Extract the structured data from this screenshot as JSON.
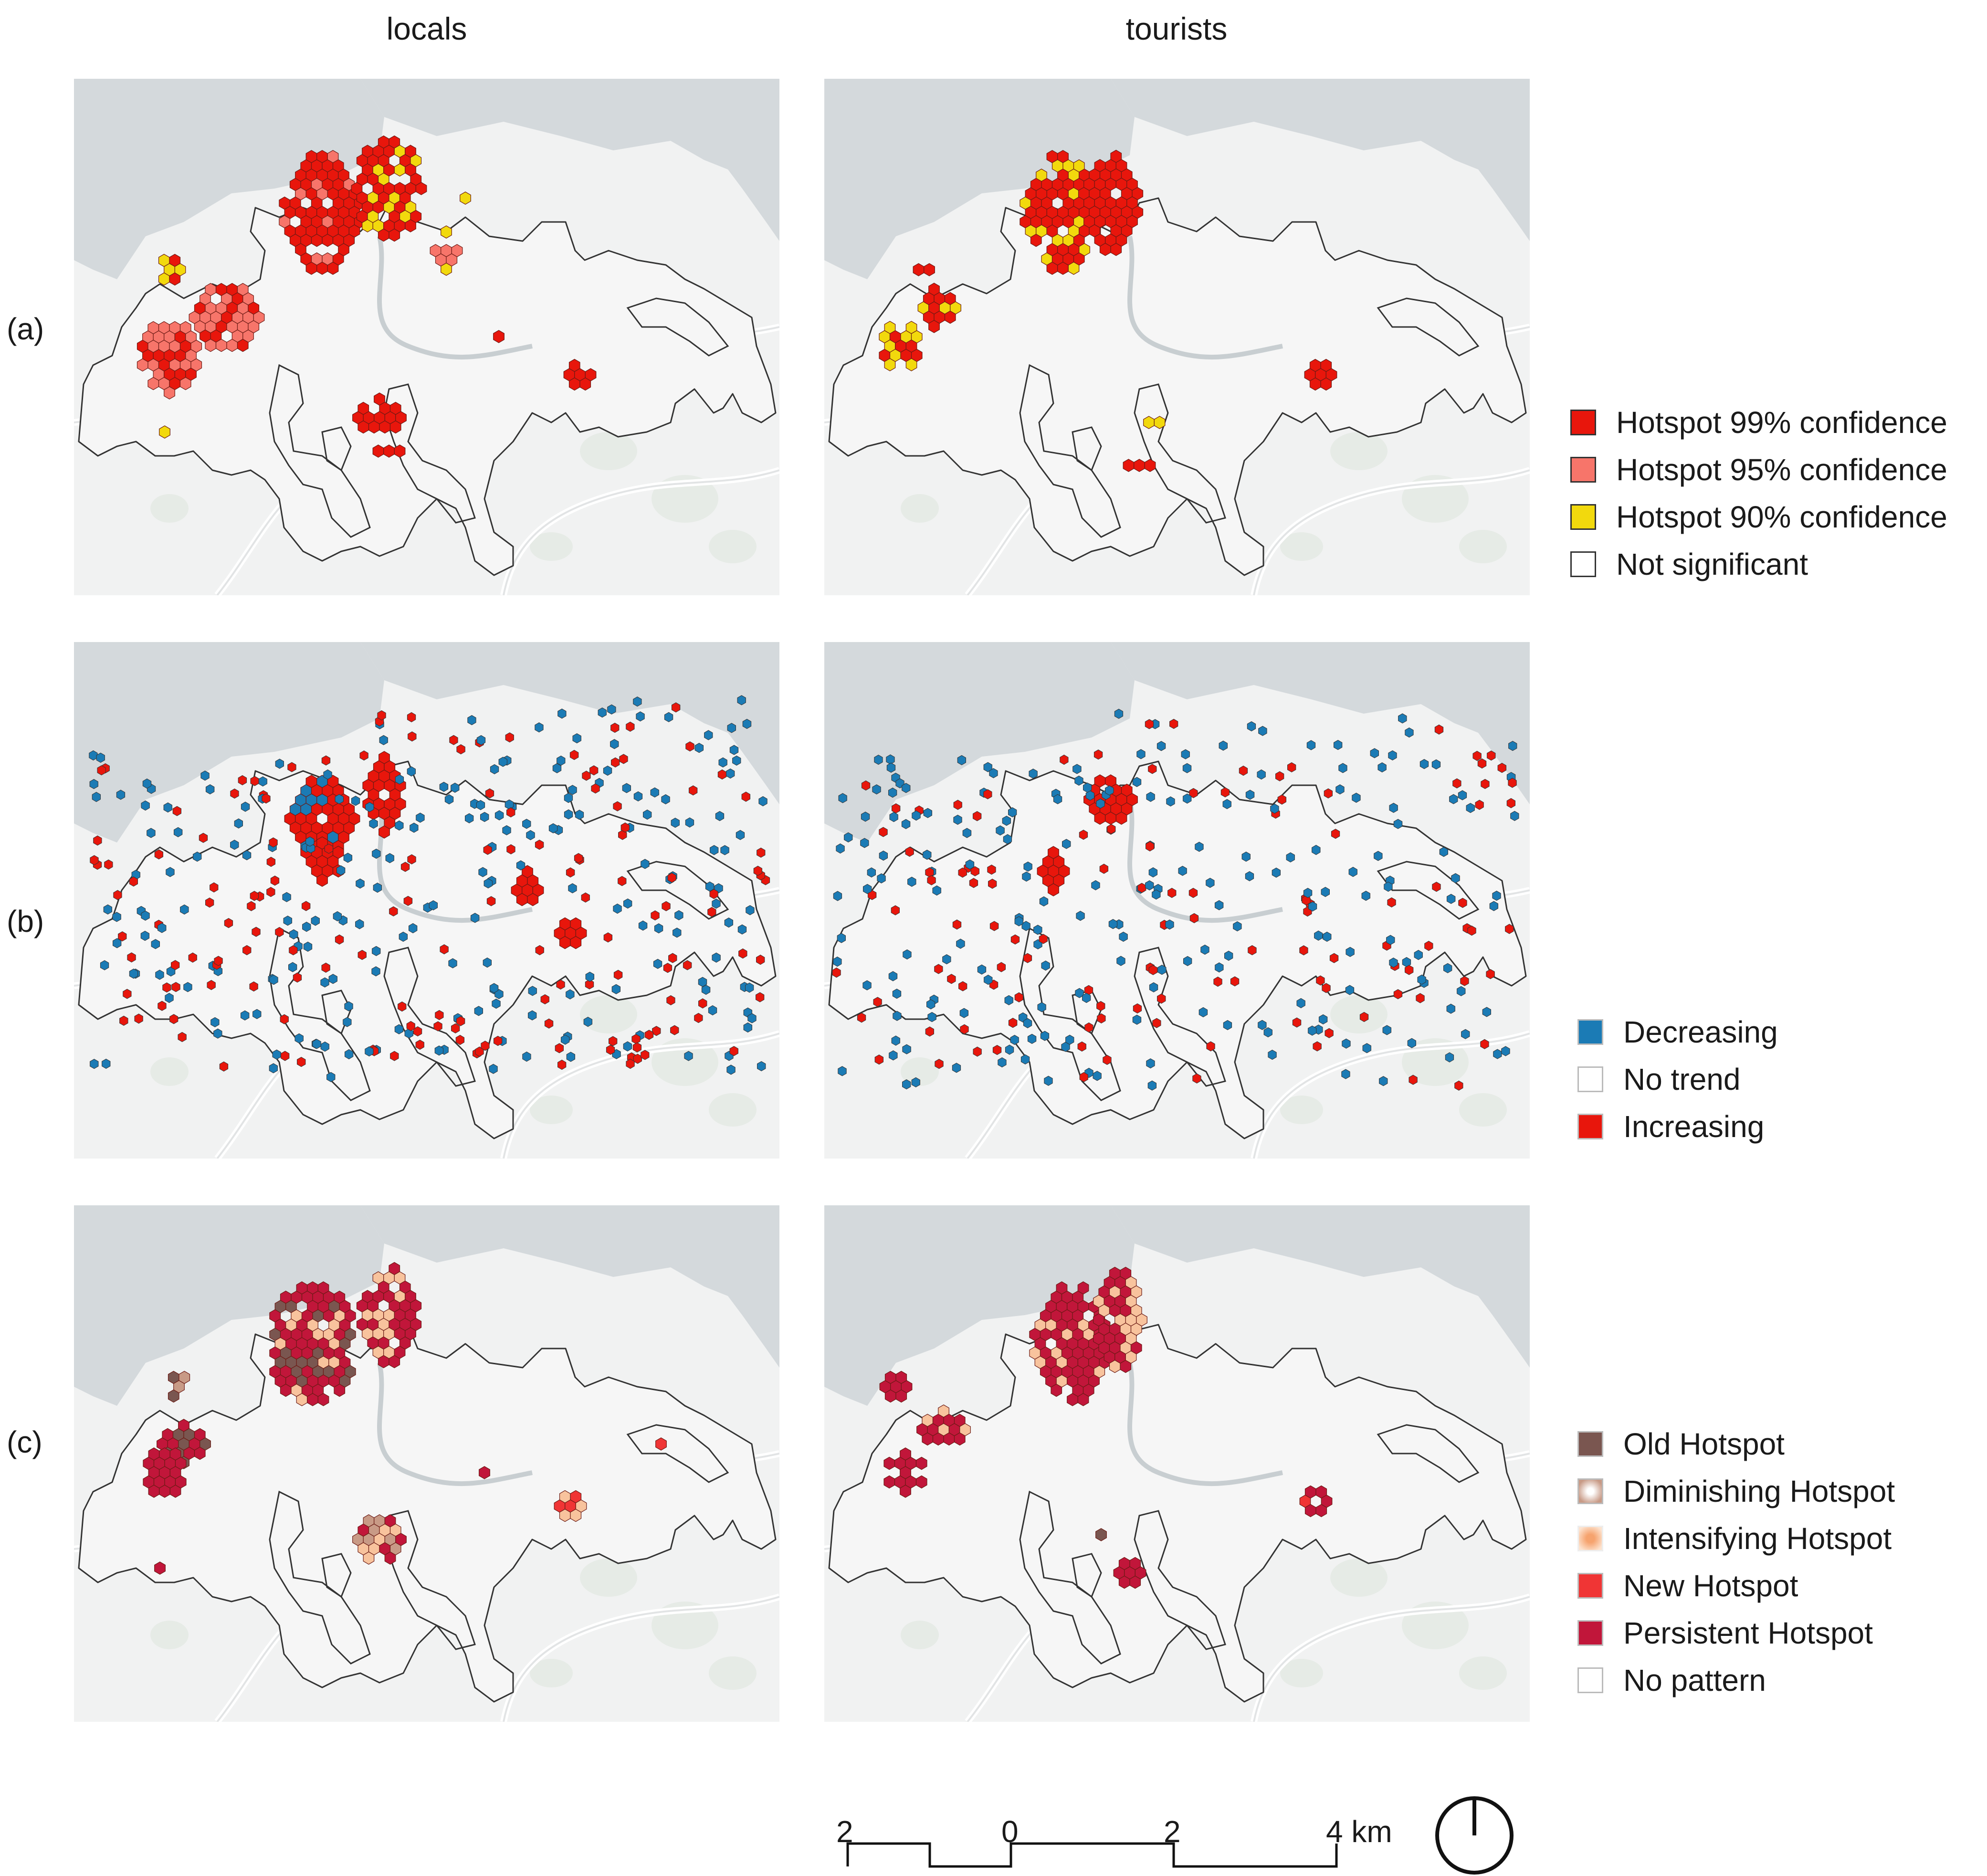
{
  "columns": {
    "left": "locals",
    "right": "tourists"
  },
  "rows": [
    {
      "label": "(a)"
    },
    {
      "label": "(b)"
    },
    {
      "label": "(c)"
    }
  ],
  "legends": {
    "a": [
      {
        "label": "Hotspot 99% confidence",
        "color": "#e8160c"
      },
      {
        "label": "Hotspot 95% confidence",
        "color": "#f7756a"
      },
      {
        "label": "Hotspot 90% confidence",
        "color": "#f2d90d"
      },
      {
        "label": "Not significant",
        "color": "#ffffff"
      }
    ],
    "b": [
      {
        "label": "Decreasing",
        "color": "#1b7bb5"
      },
      {
        "label": "No trend",
        "color": "#ffffff"
      },
      {
        "label": "Increasing",
        "color": "#e8160c"
      }
    ],
    "c": [
      {
        "label": "Old Hotspot",
        "color": "#7a5650"
      },
      {
        "label": "Diminishing Hotspot",
        "color": "#c89a86"
      },
      {
        "label": "Intensifying Hotspot",
        "color": "#f8c39d"
      },
      {
        "label": "New Hotspot",
        "color": "#f03535"
      },
      {
        "label": "Persistent Hotspot",
        "color": "#c1163a"
      },
      {
        "label": "No pattern",
        "color": "#ffffff"
      }
    ]
  },
  "scale": {
    "ticks": [
      "2",
      "0",
      "2",
      "4 km"
    ]
  },
  "map_colors": {
    "water": "#d4d9dc",
    "land": "#f1f2f2",
    "boundary": "#333333"
  }
}
